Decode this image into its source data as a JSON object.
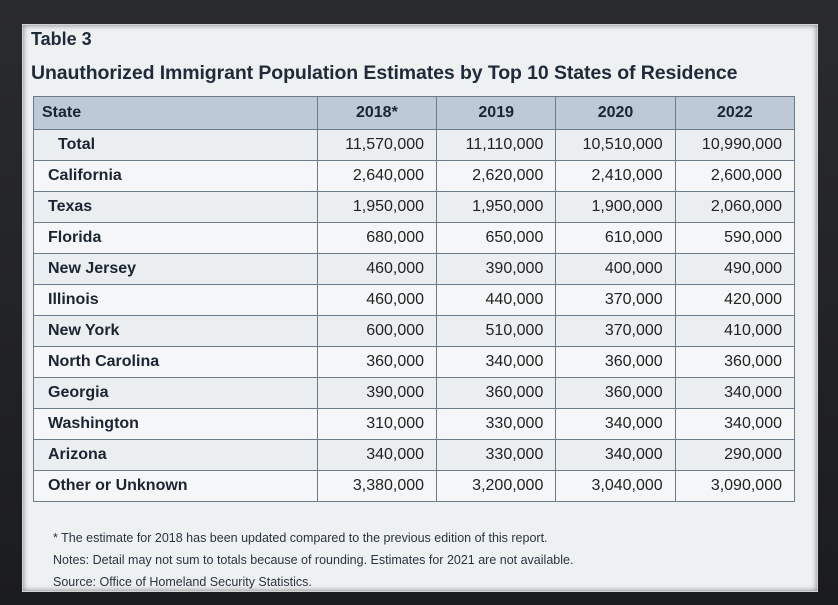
{
  "table_label": "Table 3",
  "title": "Unauthorized Immigrant Population Estimates by Top 10 States of Residence",
  "columns": [
    "State",
    "2018*",
    "2019",
    "2020",
    "2022"
  ],
  "rows": [
    {
      "state": "Total",
      "values": [
        "11,570,000",
        "11,110,000",
        "10,510,000",
        "10,990,000"
      ]
    },
    {
      "state": "California",
      "values": [
        "2,640,000",
        "2,620,000",
        "2,410,000",
        "2,600,000"
      ]
    },
    {
      "state": "Texas",
      "values": [
        "1,950,000",
        "1,950,000",
        "1,900,000",
        "2,060,000"
      ]
    },
    {
      "state": "Florida",
      "values": [
        "680,000",
        "650,000",
        "610,000",
        "590,000"
      ]
    },
    {
      "state": "New Jersey",
      "values": [
        "460,000",
        "390,000",
        "400,000",
        "490,000"
      ]
    },
    {
      "state": "Illinois",
      "values": [
        "460,000",
        "440,000",
        "370,000",
        "420,000"
      ]
    },
    {
      "state": "New York",
      "values": [
        "600,000",
        "510,000",
        "370,000",
        "410,000"
      ]
    },
    {
      "state": "North Carolina",
      "values": [
        "360,000",
        "340,000",
        "360,000",
        "360,000"
      ]
    },
    {
      "state": "Georgia",
      "values": [
        "390,000",
        "360,000",
        "360,000",
        "340,000"
      ]
    },
    {
      "state": "Washington",
      "values": [
        "310,000",
        "330,000",
        "340,000",
        "340,000"
      ]
    },
    {
      "state": "Arizona",
      "values": [
        "340,000",
        "330,000",
        "340,000",
        "290,000"
      ]
    },
    {
      "state": "Other or Unknown",
      "values": [
        "3,380,000",
        "3,200,000",
        "3,040,000",
        "3,090,000"
      ]
    }
  ],
  "footnotes": {
    "asterisk": "* The estimate for 2018 has been updated compared to the previous edition of this report.",
    "notes": "Notes: Detail may not sum to totals because of rounding. Estimates for 2021 are not available.",
    "source": "Source: Office of Homeland Security Statistics."
  },
  "colors": {
    "header_bg": "#bcc9d6",
    "border": "#6d7a88",
    "sheet_bg": "#eef1f2"
  }
}
